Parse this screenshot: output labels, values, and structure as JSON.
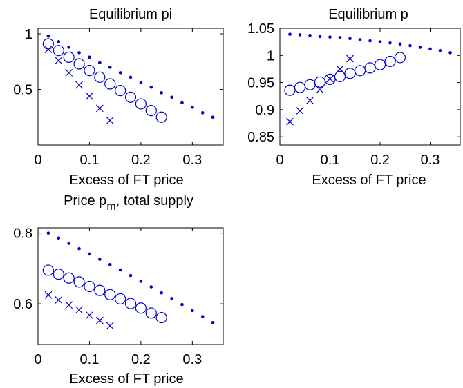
{
  "figure": {
    "color": "#0000cc"
  },
  "chart_data": [
    {
      "type": "scatter",
      "title": "Equilibrium pi",
      "xlabel": "Excess of FT price",
      "ylabel": "",
      "xlim": [
        0,
        0.36
      ],
      "ylim": [
        0.0,
        1.05
      ],
      "xticks": [
        0,
        0.1,
        0.2,
        0.3
      ],
      "xtick_labels": [
        "0",
        "0.1",
        "0.2",
        "0.3"
      ],
      "yticks": [
        0.5,
        1
      ],
      "ytick_labels": [
        "0.5",
        "1"
      ],
      "grid": false,
      "series": [
        {
          "marker": "dot",
          "x": [
            0.02,
            0.04,
            0.06,
            0.08,
            0.1,
            0.12,
            0.14,
            0.16,
            0.18,
            0.2,
            0.22,
            0.24,
            0.26,
            0.28,
            0.3,
            0.32,
            0.34
          ],
          "y": [
            0.98,
            0.93,
            0.88,
            0.83,
            0.79,
            0.74,
            0.7,
            0.65,
            0.61,
            0.56,
            0.52,
            0.47,
            0.43,
            0.38,
            0.34,
            0.29,
            0.25
          ]
        },
        {
          "marker": "circle",
          "x": [
            0.02,
            0.04,
            0.06,
            0.08,
            0.1,
            0.12,
            0.14,
            0.16,
            0.18,
            0.2,
            0.22,
            0.24
          ],
          "y": [
            0.91,
            0.85,
            0.79,
            0.73,
            0.67,
            0.61,
            0.55,
            0.49,
            0.43,
            0.37,
            0.31,
            0.25
          ]
        },
        {
          "marker": "x",
          "x": [
            0.02,
            0.04,
            0.06,
            0.08,
            0.1,
            0.12,
            0.14
          ],
          "y": [
            0.86,
            0.76,
            0.65,
            0.54,
            0.44,
            0.33,
            0.22
          ]
        }
      ]
    },
    {
      "type": "scatter",
      "title": "Equilibrium p",
      "xlabel": "Excess of FT price",
      "ylabel": "",
      "xlim": [
        0,
        0.36
      ],
      "ylim": [
        0.835,
        1.05
      ],
      "xticks": [
        0,
        0.1,
        0.2,
        0.3
      ],
      "xtick_labels": [
        "0",
        "0.1",
        "0.2",
        "0.3"
      ],
      "yticks": [
        0.85,
        0.9,
        0.95,
        1,
        1.05
      ],
      "ytick_labels": [
        "0.85",
        "0.9",
        "0.95",
        "1",
        "1.05"
      ],
      "grid": false,
      "series": [
        {
          "marker": "dot",
          "x": [
            0.02,
            0.04,
            0.06,
            0.08,
            0.1,
            0.12,
            0.14,
            0.16,
            0.18,
            0.2,
            0.22,
            0.24,
            0.26,
            0.28,
            0.3,
            0.32,
            0.34
          ],
          "y": [
            1.039,
            1.038,
            1.037,
            1.035,
            1.034,
            1.033,
            1.031,
            1.029,
            1.027,
            1.025,
            1.023,
            1.021,
            1.018,
            1.015,
            1.012,
            1.009,
            1.005
          ]
        },
        {
          "marker": "circle",
          "x": [
            0.02,
            0.04,
            0.06,
            0.08,
            0.1,
            0.12,
            0.14,
            0.16,
            0.18,
            0.2,
            0.22,
            0.24
          ],
          "y": [
            0.936,
            0.941,
            0.946,
            0.951,
            0.956,
            0.961,
            0.967,
            0.972,
            0.977,
            0.983,
            0.989,
            0.996
          ]
        },
        {
          "marker": "x",
          "x": [
            0.02,
            0.04,
            0.06,
            0.08,
            0.1,
            0.12,
            0.14
          ],
          "y": [
            0.878,
            0.898,
            0.917,
            0.937,
            0.957,
            0.975,
            0.994
          ]
        }
      ]
    },
    {
      "type": "scatter",
      "title": "Price p_m, total supply",
      "title_main": "Price p",
      "title_sub": "m",
      "title_rest": ", total supply",
      "xlabel": "Excess of FT price",
      "ylabel": "",
      "xlim": [
        0,
        0.36
      ],
      "ylim": [
        0.485,
        0.815
      ],
      "xticks": [
        0,
        0.1,
        0.2,
        0.3
      ],
      "xtick_labels": [
        "0",
        "0.1",
        "0.2",
        "0.3"
      ],
      "yticks": [
        0.6,
        0.8
      ],
      "ytick_labels": [
        "0.6",
        "0.8"
      ],
      "grid": false,
      "series": [
        {
          "marker": "dot",
          "x": [
            0.02,
            0.04,
            0.06,
            0.08,
            0.1,
            0.12,
            0.14,
            0.16,
            0.18,
            0.2,
            0.22,
            0.24,
            0.26,
            0.28,
            0.3,
            0.32,
            0.34
          ],
          "y": [
            0.8,
            0.786,
            0.771,
            0.756,
            0.741,
            0.726,
            0.711,
            0.696,
            0.68,
            0.664,
            0.648,
            0.631,
            0.615,
            0.598,
            0.581,
            0.564,
            0.547
          ]
        },
        {
          "marker": "circle",
          "x": [
            0.02,
            0.04,
            0.06,
            0.08,
            0.1,
            0.12,
            0.14,
            0.16,
            0.18,
            0.2,
            0.22,
            0.24
          ],
          "y": [
            0.695,
            0.684,
            0.673,
            0.662,
            0.649,
            0.638,
            0.626,
            0.614,
            0.601,
            0.588,
            0.574,
            0.561
          ]
        },
        {
          "marker": "x",
          "x": [
            0.02,
            0.04,
            0.06,
            0.08,
            0.1,
            0.12,
            0.14
          ],
          "y": [
            0.625,
            0.611,
            0.597,
            0.583,
            0.568,
            0.553,
            0.538
          ]
        }
      ]
    }
  ]
}
